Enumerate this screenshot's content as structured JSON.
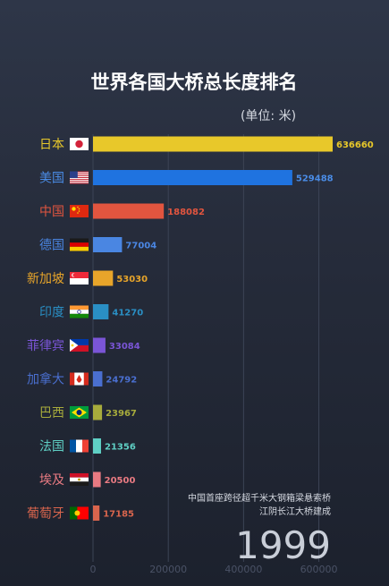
{
  "chart_data": {
    "type": "bar",
    "orientation": "horizontal",
    "title": "世界各国大桥总长度排名",
    "unit_label": "(单位: 米)",
    "categories": [
      "日本",
      "美国",
      "中国",
      "德国",
      "新加坡",
      "印度",
      "菲律宾",
      "加拿大",
      "巴西",
      "法国",
      "埃及",
      "葡萄牙"
    ],
    "values": [
      636660,
      529488,
      188082,
      77004,
      53030,
      41270,
      33084,
      24792,
      23967,
      21356,
      20500,
      17185
    ],
    "value_labels": [
      "636660",
      "529488",
      "188082",
      "77004",
      "53030",
      "41270",
      "33084",
      "24792",
      "23967",
      "21356",
      "20500",
      "17185"
    ],
    "colors": [
      "#e8c82a",
      "#1f73e0",
      "#e2553f",
      "#4a86e2",
      "#e8a52a",
      "#2a8fc4",
      "#7a55d6",
      "#4a6fd0",
      "#a7ab3c",
      "#5fcfc4",
      "#e87a82",
      "#d9654d"
    ],
    "label_colors": [
      "#e8c82a",
      "#4a8ce6",
      "#e2553f",
      "#4a86e2",
      "#e8a52a",
      "#2a8fc4",
      "#7a55d6",
      "#4a6fd0",
      "#a7ab3c",
      "#5fcfc4",
      "#e87a82",
      "#d9654d"
    ],
    "flags": [
      "jp",
      "us",
      "cn",
      "de",
      "sg",
      "in",
      "ph",
      "ca",
      "br",
      "fr",
      "eg",
      "pt"
    ],
    "xticks": [
      0,
      200000,
      400000,
      600000
    ],
    "xtick_labels": [
      "0",
      "200000",
      "400000",
      "600000"
    ],
    "xlim": [
      0,
      636660
    ],
    "grid": true,
    "year": "1999",
    "annotation": [
      "中国首座跨径超千米大钢箱梁悬索桥",
      "江阴长江大桥建成"
    ]
  }
}
